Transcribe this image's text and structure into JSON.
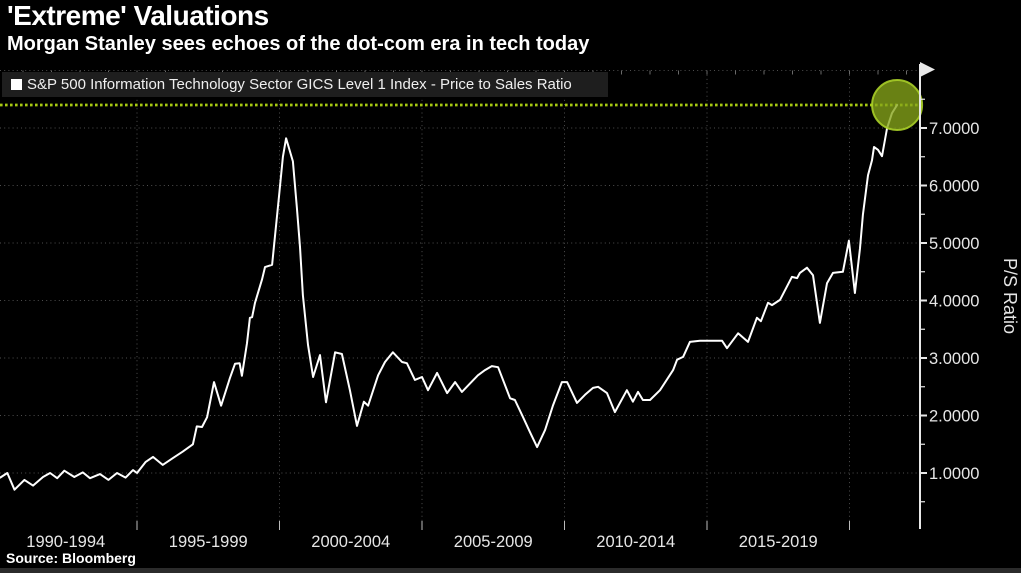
{
  "header": {
    "title": "'Extreme' Valuations",
    "subtitle": "Morgan Stanley sees echoes of the dot-com era in tech today"
  },
  "legend": {
    "label": "S&P 500 Information Technology Sector GICS Level 1 Index - Price to Sales Ratio"
  },
  "source": "Source: Bloomberg",
  "colors": {
    "background": "#000000",
    "series_line": "#ffffff",
    "threshold_line": "#a6c812",
    "highlight_circle_fill": "#87a51a",
    "highlight_circle_rim": "#a9ce28",
    "grid": "#4e4e4e",
    "axis": "#e8e8e8",
    "tick_text": "#e6e6e6",
    "legend_bg": "#1e1e1e"
  },
  "chart_data": {
    "type": "line",
    "title": "'Extreme' Valuations",
    "subtitle": "Morgan Stanley sees echoes of the dot-com era in tech today",
    "ylabel": "P/S Ratio",
    "xlabel": "",
    "ylim": [
      0,
      8
    ],
    "xlim": [
      1990.2,
      2022.5
    ],
    "grid": "dotted",
    "legend_position": "top-left",
    "y_major_ticks": [
      {
        "value": 1,
        "label": "1.0000"
      },
      {
        "value": 2,
        "label": "2.0000"
      },
      {
        "value": 3,
        "label": "3.0000"
      },
      {
        "value": 4,
        "label": "4.0000"
      },
      {
        "value": 5,
        "label": "5.0000"
      },
      {
        "value": 6,
        "label": "6.0000"
      },
      {
        "value": 7,
        "label": "7.0000"
      }
    ],
    "y_minor_step": 0.5,
    "x_category_labels": [
      {
        "label": "1990-1994",
        "center_year": 1992.5
      },
      {
        "label": "1995-1999",
        "center_year": 1997.5
      },
      {
        "label": "2000-2004",
        "center_year": 2002.5
      },
      {
        "label": "2005-2009",
        "center_year": 2007.5
      },
      {
        "label": "2010-2014",
        "center_year": 2012.5
      },
      {
        "label": "2015-2019",
        "center_year": 2017.5
      }
    ],
    "x_gridline_years": [
      1995,
      2000,
      2005,
      2010,
      2015,
      2020
    ],
    "threshold": {
      "value": 7.4,
      "style": "dashed"
    },
    "highlight": {
      "year": 2021.67,
      "value": 7.4
    },
    "series": [
      {
        "name": "S&P 500 Information Technology Sector GICS Level 1 Index - Price to Sales Ratio",
        "frequency": "quarterly (approx., values read from chart)",
        "points": [
          [
            1990.2,
            0.92
          ],
          [
            1990.45,
            1.0
          ],
          [
            1990.7,
            0.71
          ],
          [
            1991.05,
            0.88
          ],
          [
            1991.35,
            0.78
          ],
          [
            1991.7,
            0.93
          ],
          [
            1991.95,
            1.0
          ],
          [
            1992.2,
            0.91
          ],
          [
            1992.45,
            1.04
          ],
          [
            1992.8,
            0.93
          ],
          [
            1993.1,
            1.01
          ],
          [
            1993.35,
            0.91
          ],
          [
            1993.7,
            0.98
          ],
          [
            1994.0,
            0.88
          ],
          [
            1994.3,
            1.0
          ],
          [
            1994.6,
            0.92
          ],
          [
            1994.86,
            1.05
          ],
          [
            1995.0,
            1.0
          ],
          [
            1995.3,
            1.19
          ],
          [
            1995.56,
            1.28
          ],
          [
            1995.9,
            1.14
          ],
          [
            1996.26,
            1.26
          ],
          [
            1996.6,
            1.37
          ],
          [
            1996.96,
            1.5
          ],
          [
            1997.1,
            1.81
          ],
          [
            1997.28,
            1.8
          ],
          [
            1997.46,
            1.97
          ],
          [
            1997.7,
            2.58
          ],
          [
            1997.95,
            2.17
          ],
          [
            1998.26,
            2.65
          ],
          [
            1998.44,
            2.9
          ],
          [
            1998.6,
            2.91
          ],
          [
            1998.68,
            2.69
          ],
          [
            1998.86,
            3.26
          ],
          [
            1998.96,
            3.7
          ],
          [
            1999.04,
            3.71
          ],
          [
            1999.14,
            3.96
          ],
          [
            1999.39,
            4.37
          ],
          [
            1999.49,
            4.58
          ],
          [
            1999.74,
            4.62
          ],
          [
            2000.0,
            5.9
          ],
          [
            2000.12,
            6.5
          ],
          [
            2000.23,
            6.82
          ],
          [
            2000.47,
            6.42
          ],
          [
            2000.61,
            5.61
          ],
          [
            2000.72,
            4.93
          ],
          [
            2000.82,
            4.09
          ],
          [
            2001.0,
            3.23
          ],
          [
            2001.18,
            2.67
          ],
          [
            2001.42,
            3.05
          ],
          [
            2001.63,
            2.23
          ],
          [
            2001.95,
            3.1
          ],
          [
            2002.19,
            3.07
          ],
          [
            2002.47,
            2.44
          ],
          [
            2002.72,
            1.82
          ],
          [
            2002.96,
            2.24
          ],
          [
            2003.11,
            2.17
          ],
          [
            2003.46,
            2.7
          ],
          [
            2003.7,
            2.93
          ],
          [
            2003.98,
            3.1
          ],
          [
            2004.3,
            2.93
          ],
          [
            2004.47,
            2.91
          ],
          [
            2004.75,
            2.62
          ],
          [
            2005.0,
            2.67
          ],
          [
            2005.21,
            2.44
          ],
          [
            2005.53,
            2.74
          ],
          [
            2005.88,
            2.39
          ],
          [
            2006.16,
            2.58
          ],
          [
            2006.4,
            2.41
          ],
          [
            2006.96,
            2.7
          ],
          [
            2007.21,
            2.79
          ],
          [
            2007.45,
            2.86
          ],
          [
            2007.67,
            2.84
          ],
          [
            2008.09,
            2.3
          ],
          [
            2008.26,
            2.27
          ],
          [
            2008.51,
            2.01
          ],
          [
            2008.79,
            1.71
          ],
          [
            2009.04,
            1.45
          ],
          [
            2009.32,
            1.75
          ],
          [
            2009.6,
            2.18
          ],
          [
            2009.91,
            2.58
          ],
          [
            2010.09,
            2.58
          ],
          [
            2010.44,
            2.22
          ],
          [
            2010.72,
            2.36
          ],
          [
            2011.0,
            2.48
          ],
          [
            2011.18,
            2.5
          ],
          [
            2011.49,
            2.39
          ],
          [
            2011.77,
            2.06
          ],
          [
            2012.19,
            2.44
          ],
          [
            2012.4,
            2.24
          ],
          [
            2012.58,
            2.41
          ],
          [
            2012.75,
            2.27
          ],
          [
            2013.0,
            2.27
          ],
          [
            2013.35,
            2.44
          ],
          [
            2013.81,
            2.79
          ],
          [
            2013.95,
            2.97
          ],
          [
            2014.16,
            3.02
          ],
          [
            2014.4,
            3.28
          ],
          [
            2014.75,
            3.3
          ],
          [
            2015.11,
            3.3
          ],
          [
            2015.53,
            3.3
          ],
          [
            2015.7,
            3.17
          ],
          [
            2016.09,
            3.43
          ],
          [
            2016.44,
            3.28
          ],
          [
            2016.75,
            3.7
          ],
          [
            2016.89,
            3.64
          ],
          [
            2017.14,
            3.96
          ],
          [
            2017.28,
            3.92
          ],
          [
            2017.56,
            4.01
          ],
          [
            2017.98,
            4.41
          ],
          [
            2018.16,
            4.39
          ],
          [
            2018.26,
            4.48
          ],
          [
            2018.51,
            4.57
          ],
          [
            2018.72,
            4.44
          ],
          [
            2018.96,
            3.61
          ],
          [
            2019.21,
            4.3
          ],
          [
            2019.42,
            4.48
          ],
          [
            2019.77,
            4.5
          ],
          [
            2019.98,
            5.04
          ],
          [
            2020.19,
            4.13
          ],
          [
            2020.37,
            4.91
          ],
          [
            2020.47,
            5.49
          ],
          [
            2020.65,
            6.18
          ],
          [
            2020.79,
            6.44
          ],
          [
            2020.86,
            6.67
          ],
          [
            2021.0,
            6.62
          ],
          [
            2021.14,
            6.51
          ],
          [
            2021.32,
            7.0
          ],
          [
            2021.49,
            7.26
          ],
          [
            2021.67,
            7.4
          ]
        ]
      }
    ]
  }
}
